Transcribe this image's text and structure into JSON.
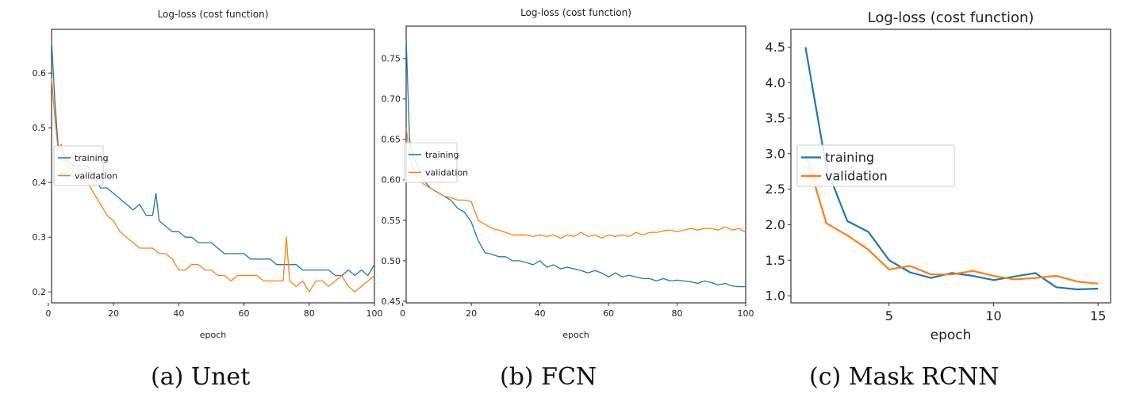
{
  "figure": {
    "captions": [
      "(a) Unet",
      "(b) FCN",
      "(c) Mask RCNN"
    ]
  },
  "colors": {
    "training": "#1f77b4",
    "validation": "#ff7f0e"
  },
  "chart_data": [
    {
      "type": "line",
      "title": "Log-loss (cost function)",
      "xlabel": "epoch",
      "ylabel": "",
      "xlim": [
        1,
        100
      ],
      "ylim": [
        0.18,
        0.68
      ],
      "xticks": [
        0,
        20,
        40,
        60,
        80,
        100
      ],
      "yticks": [
        0.2,
        0.3,
        0.4,
        0.5,
        0.6
      ],
      "ytick_labels": [
        "0.2",
        "0.3",
        "0.4",
        "0.5",
        "0.6"
      ],
      "legend": "center-left",
      "grid": false,
      "series": [
        {
          "name": "training",
          "x": [
            1,
            2,
            3,
            4,
            5,
            6,
            8,
            10,
            12,
            14,
            16,
            18,
            20,
            22,
            24,
            26,
            28,
            30,
            32,
            33,
            34,
            36,
            38,
            40,
            42,
            44,
            46,
            48,
            50,
            52,
            54,
            56,
            58,
            60,
            62,
            64,
            66,
            68,
            70,
            72,
            74,
            76,
            78,
            80,
            82,
            84,
            86,
            88,
            90,
            92,
            94,
            96,
            98,
            100
          ],
          "y": [
            0.66,
            0.55,
            0.47,
            0.46,
            0.45,
            0.44,
            0.43,
            0.43,
            0.43,
            0.41,
            0.39,
            0.39,
            0.38,
            0.37,
            0.36,
            0.35,
            0.36,
            0.34,
            0.34,
            0.38,
            0.33,
            0.32,
            0.31,
            0.31,
            0.3,
            0.3,
            0.29,
            0.29,
            0.29,
            0.28,
            0.27,
            0.27,
            0.27,
            0.27,
            0.26,
            0.26,
            0.26,
            0.26,
            0.25,
            0.25,
            0.25,
            0.25,
            0.24,
            0.24,
            0.24,
            0.24,
            0.24,
            0.23,
            0.23,
            0.24,
            0.23,
            0.24,
            0.23,
            0.25
          ]
        },
        {
          "name": "validation",
          "x": [
            1,
            2,
            3,
            4,
            5,
            6,
            8,
            10,
            12,
            14,
            16,
            18,
            20,
            22,
            24,
            26,
            28,
            30,
            32,
            34,
            36,
            38,
            40,
            42,
            44,
            46,
            48,
            50,
            52,
            54,
            56,
            58,
            60,
            62,
            64,
            66,
            68,
            70,
            72,
            73,
            74,
            76,
            78,
            80,
            82,
            84,
            86,
            88,
            90,
            92,
            94,
            96,
            98,
            100
          ],
          "y": [
            0.59,
            0.52,
            0.46,
            0.47,
            0.44,
            0.43,
            0.42,
            0.41,
            0.4,
            0.38,
            0.36,
            0.34,
            0.33,
            0.31,
            0.3,
            0.29,
            0.28,
            0.28,
            0.28,
            0.27,
            0.27,
            0.26,
            0.24,
            0.24,
            0.25,
            0.25,
            0.24,
            0.24,
            0.23,
            0.23,
            0.22,
            0.23,
            0.23,
            0.23,
            0.23,
            0.22,
            0.22,
            0.22,
            0.22,
            0.3,
            0.22,
            0.21,
            0.22,
            0.2,
            0.22,
            0.22,
            0.21,
            0.22,
            0.23,
            0.21,
            0.2,
            0.21,
            0.22,
            0.23
          ]
        }
      ]
    },
    {
      "type": "line",
      "title": "Log-loss (cost function)",
      "xlabel": "epoch",
      "ylabel": "",
      "xlim": [
        1,
        100
      ],
      "ylim": [
        0.448,
        0.79
      ],
      "xticks": [
        0,
        20,
        40,
        60,
        80,
        100
      ],
      "yticks": [
        0.45,
        0.5,
        0.55,
        0.6,
        0.65,
        0.7,
        0.75
      ],
      "ytick_labels": [
        "0.45",
        "0.50",
        "0.55",
        "0.60",
        "0.65",
        "0.70",
        "0.75"
      ],
      "legend": "center-left",
      "grid": false,
      "series": [
        {
          "name": "training",
          "x": [
            1,
            2,
            3,
            4,
            6,
            8,
            10,
            12,
            14,
            16,
            18,
            20,
            22,
            24,
            26,
            28,
            30,
            32,
            34,
            36,
            38,
            40,
            42,
            44,
            46,
            48,
            50,
            52,
            54,
            56,
            58,
            60,
            62,
            64,
            66,
            68,
            70,
            72,
            74,
            76,
            78,
            80,
            82,
            84,
            86,
            88,
            90,
            92,
            94,
            96,
            98,
            100
          ],
          "y": [
            0.775,
            0.65,
            0.63,
            0.62,
            0.6,
            0.59,
            0.585,
            0.58,
            0.575,
            0.565,
            0.56,
            0.548,
            0.525,
            0.51,
            0.508,
            0.505,
            0.505,
            0.5,
            0.5,
            0.498,
            0.495,
            0.5,
            0.492,
            0.495,
            0.49,
            0.492,
            0.49,
            0.488,
            0.485,
            0.488,
            0.485,
            0.48,
            0.485,
            0.48,
            0.482,
            0.48,
            0.478,
            0.478,
            0.475,
            0.478,
            0.475,
            0.476,
            0.475,
            0.474,
            0.472,
            0.475,
            0.473,
            0.47,
            0.472,
            0.469,
            0.468,
            0.468
          ]
        },
        {
          "name": "validation",
          "x": [
            1,
            2,
            3,
            4,
            6,
            8,
            10,
            12,
            14,
            16,
            18,
            20,
            22,
            24,
            26,
            28,
            30,
            32,
            34,
            36,
            38,
            40,
            42,
            44,
            46,
            48,
            50,
            52,
            54,
            56,
            58,
            60,
            62,
            64,
            66,
            68,
            70,
            72,
            74,
            76,
            78,
            80,
            82,
            84,
            86,
            88,
            90,
            92,
            94,
            96,
            98,
            100
          ],
          "y": [
            0.665,
            0.63,
            0.615,
            0.605,
            0.595,
            0.59,
            0.585,
            0.58,
            0.578,
            0.575,
            0.575,
            0.573,
            0.55,
            0.545,
            0.54,
            0.538,
            0.535,
            0.532,
            0.532,
            0.532,
            0.53,
            0.532,
            0.53,
            0.532,
            0.528,
            0.532,
            0.53,
            0.535,
            0.53,
            0.532,
            0.528,
            0.532,
            0.53,
            0.532,
            0.53,
            0.535,
            0.532,
            0.535,
            0.535,
            0.537,
            0.538,
            0.536,
            0.538,
            0.54,
            0.538,
            0.54,
            0.54,
            0.538,
            0.542,
            0.538,
            0.54,
            0.535
          ]
        }
      ]
    },
    {
      "type": "line",
      "title": "Log-loss (cost function)",
      "xlabel": "epoch",
      "ylabel": "",
      "xlim": [
        0.3,
        15.6
      ],
      "ylim": [
        0.9,
        4.75
      ],
      "xticks": [
        5,
        10,
        15
      ],
      "yticks": [
        1.0,
        1.5,
        2.0,
        2.5,
        3.0,
        3.5,
        4.0,
        4.5
      ],
      "ytick_labels": [
        "1.0",
        "1.5",
        "2.0",
        "2.5",
        "3.0",
        "3.5",
        "4.0",
        "4.5"
      ],
      "legend": "center-left",
      "grid": false,
      "series": [
        {
          "name": "training",
          "x": [
            1,
            2,
            3,
            4,
            5,
            6,
            7,
            8,
            9,
            10,
            11,
            12,
            13,
            14,
            15
          ],
          "y": [
            4.5,
            2.8,
            2.05,
            1.9,
            1.5,
            1.33,
            1.25,
            1.32,
            1.28,
            1.22,
            1.27,
            1.32,
            1.12,
            1.09,
            1.1
          ]
        },
        {
          "name": "validation",
          "x": [
            1,
            2,
            3,
            4,
            5,
            6,
            7,
            8,
            9,
            10,
            11,
            12,
            13,
            14,
            15
          ],
          "y": [
            3.0,
            2.02,
            1.85,
            1.65,
            1.37,
            1.42,
            1.3,
            1.3,
            1.35,
            1.28,
            1.23,
            1.25,
            1.28,
            1.2,
            1.17
          ]
        }
      ]
    }
  ]
}
